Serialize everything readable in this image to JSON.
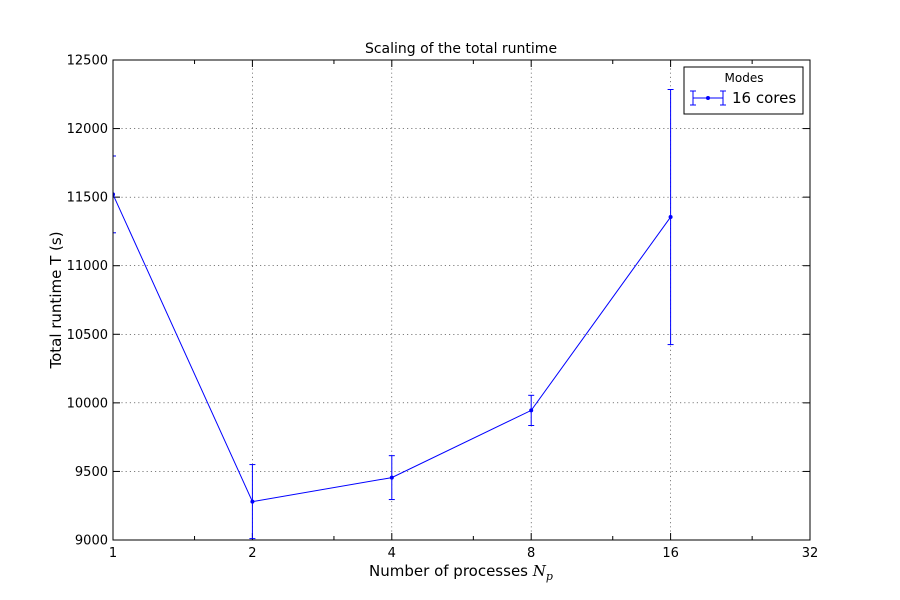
{
  "chart_data": {
    "type": "line",
    "title": "Scaling of the total runtime",
    "xlabel": "Number of processes",
    "xlabel_math": "N",
    "xlabel_math_sub": "p",
    "ylabel": "Total runtime T (s)",
    "x_scale": "log2",
    "xlim": [
      1,
      32
    ],
    "ylim": [
      9000,
      12500
    ],
    "x_ticks": [
      "1",
      "2",
      "4",
      "8",
      "16",
      "32"
    ],
    "y_ticks": [
      "9000",
      "9500",
      "10000",
      "10500",
      "11000",
      "11500",
      "12000",
      "12500"
    ],
    "grid": true,
    "legend": {
      "title": "Modes",
      "position": "top-right"
    },
    "series": [
      {
        "name": "16 cores",
        "color": "#0000ff",
        "x": [
          1,
          2,
          4,
          8,
          16
        ],
        "y": [
          11520,
          9280,
          9455,
          9945,
          11355
        ],
        "yerr": [
          280,
          270,
          160,
          110,
          930
        ]
      }
    ]
  }
}
